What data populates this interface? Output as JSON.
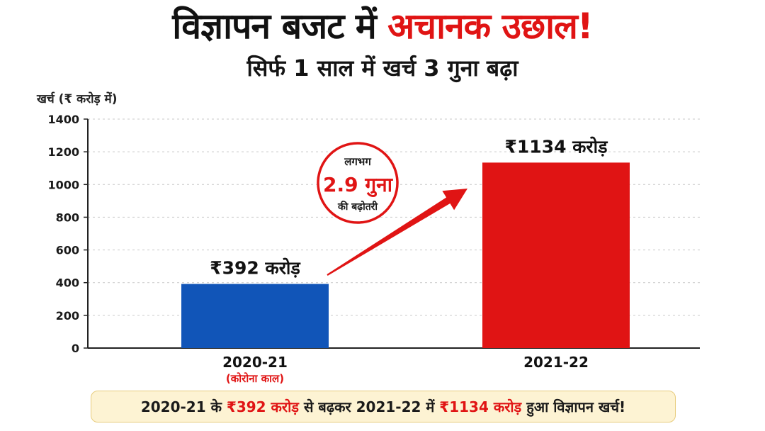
{
  "header": {
    "title_part1": "विज्ञापन बजट में",
    "title_part2": "अचानक उछाल!",
    "subtitle": "सिर्फ 1 साल में खर्च 3 गुना बढ़ा"
  },
  "colors": {
    "blue_bar": "#1155b8",
    "red_bar": "#e01414",
    "accent_red": "#e01414",
    "footer_bg": "#fdf3d3",
    "footer_border": "#e7cc7d"
  },
  "chart_data": {
    "type": "bar",
    "ylabel": "खर्च (₹ करोड़ में)",
    "xlabel": "",
    "categories": [
      "2020-21",
      "2021-22"
    ],
    "category_notes": [
      "(कोरोना काल)",
      ""
    ],
    "values": [
      392,
      1134
    ],
    "data_labels": [
      "₹392 करोड़",
      "₹1134 करोड़"
    ],
    "bar_colors": [
      "#1155b8",
      "#e01414"
    ],
    "ylim": [
      0,
      1400
    ],
    "yticks": [
      0,
      200,
      400,
      600,
      800,
      1000,
      1200,
      1400
    ],
    "grid": true,
    "annotation": {
      "line1": "लगभग",
      "line2": "2.9 गुना",
      "line3": "की बढ़ोतरी",
      "icon": "growth-arrow-icon"
    }
  },
  "footer": {
    "part1": "2020-21 के ",
    "part2": "₹392 करोड़",
    "part3": " से बढ़कर 2021-22 में ",
    "part4": "₹1134 करोड़",
    "part5": " हुआ विज्ञापन खर्च!"
  }
}
